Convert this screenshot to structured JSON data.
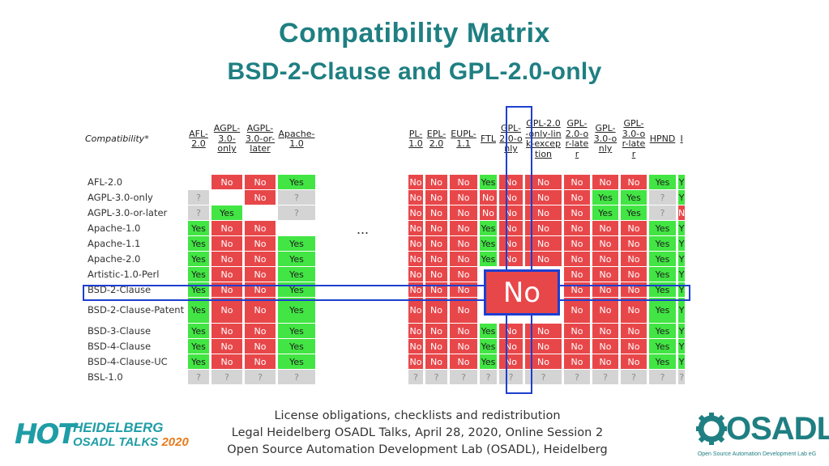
{
  "header": {
    "title": "Compatibility Matrix",
    "subtitle": "BSD-2-Clause and GPL-2.0-only"
  },
  "matrix": {
    "corner_label": "Compatibility*",
    "ellipsis": "...",
    "left_columns": [
      "AFL-2.0",
      "AGPL-3.0-only",
      "AGPL-3.0-or-later",
      "Apache-1.0"
    ],
    "right_columns": [
      "PL-1.0",
      "EPL-2.0",
      "EUPL-1.1",
      "FTL",
      "GPL-2.0-only",
      "GPL-2.0-only-link-exception",
      "GPL-2.0-or-later",
      "GPL-3.0-only",
      "GPL-3.0-or-later",
      "HPND",
      "I"
    ],
    "rows": [
      {
        "name": "AFL-2.0",
        "left": [
          "",
          "No",
          "No",
          "Yes"
        ],
        "right": [
          "No",
          "No",
          "No",
          "Yes",
          "No",
          "No",
          "No",
          "No",
          "No",
          "Yes",
          "Y"
        ]
      },
      {
        "name": "AGPL-3.0-only",
        "left": [
          "?",
          "",
          "No",
          "?"
        ],
        "right": [
          "No",
          "No",
          "No",
          "No",
          "No",
          "No",
          "No",
          "Yes",
          "Yes",
          "?",
          "Y"
        ]
      },
      {
        "name": "AGPL-3.0-or-later",
        "left": [
          "?",
          "Yes",
          "",
          "?"
        ],
        "right": [
          "No",
          "No",
          "No",
          "No",
          "No",
          "No",
          "No",
          "Yes",
          "Yes",
          "?",
          "N"
        ]
      },
      {
        "name": "Apache-1.0",
        "left": [
          "Yes",
          "No",
          "No",
          ""
        ],
        "right": [
          "No",
          "No",
          "No",
          "Yes",
          "No",
          "No",
          "No",
          "No",
          "No",
          "Yes",
          "Y"
        ]
      },
      {
        "name": "Apache-1.1",
        "left": [
          "Yes",
          "No",
          "No",
          "Yes"
        ],
        "right": [
          "No",
          "No",
          "No",
          "Yes",
          "No",
          "No",
          "No",
          "No",
          "No",
          "Yes",
          "Y"
        ]
      },
      {
        "name": "Apache-2.0",
        "left": [
          "Yes",
          "No",
          "No",
          "Yes"
        ],
        "right": [
          "No",
          "No",
          "No",
          "Yes",
          "No",
          "No",
          "No",
          "No",
          "No",
          "Yes",
          "Y"
        ]
      },
      {
        "name": "Artistic-1.0-Perl",
        "left": [
          "Yes",
          "No",
          "No",
          "Yes"
        ],
        "right": [
          "No",
          "No",
          "No",
          "",
          "",
          "",
          "No",
          "No",
          "No",
          "Yes",
          "Y"
        ]
      },
      {
        "name": "BSD-2-Clause",
        "left": [
          "Yes",
          "No",
          "No",
          "Yes"
        ],
        "right": [
          "No",
          "No",
          "No",
          "",
          "",
          "",
          "No",
          "No",
          "No",
          "Yes",
          "Y"
        ]
      },
      {
        "name": "BSD-2-Clause-Patent",
        "left": [
          "Yes",
          "No",
          "No",
          "Yes"
        ],
        "right": [
          "No",
          "No",
          "No",
          "",
          "",
          "",
          "No",
          "No",
          "No",
          "Yes",
          "Y"
        ]
      },
      {
        "name": "BSD-3-Clause",
        "left": [
          "Yes",
          "No",
          "No",
          "Yes"
        ],
        "right": [
          "No",
          "No",
          "No",
          "Yes",
          "No",
          "No",
          "No",
          "No",
          "No",
          "Yes",
          "Y"
        ]
      },
      {
        "name": "BSD-4-Clause",
        "left": [
          "Yes",
          "No",
          "No",
          "Yes"
        ],
        "right": [
          "No",
          "No",
          "No",
          "Yes",
          "No",
          "No",
          "No",
          "No",
          "No",
          "Yes",
          "Y"
        ]
      },
      {
        "name": "BSD-4-Clause-UC",
        "left": [
          "Yes",
          "No",
          "No",
          "Yes"
        ],
        "right": [
          "No",
          "No",
          "No",
          "Yes",
          "No",
          "No",
          "No",
          "No",
          "No",
          "Yes",
          "Y"
        ]
      },
      {
        "name": "BSL-1.0",
        "left": [
          "?",
          "?",
          "?",
          "?"
        ],
        "right": [
          "?",
          "?",
          "?",
          "?",
          "?",
          "?",
          "?",
          "?",
          "?",
          "?",
          "?"
        ]
      }
    ],
    "highlight_value": "No"
  },
  "footer": {
    "line1": "License obligations, checklists and redistribution",
    "line2": "Legal Heidelberg OSADL Talks, April 28, 2020, Online Session 2",
    "line3": "Open Source Automation Development Lab (OSADL), Heidelberg"
  },
  "logos": {
    "hot_mark": "HOT",
    "hot_line1": "HEIDELBERG",
    "hot_line2": "OSADL TALKS",
    "hot_year": "2020",
    "osadl_name": "OSADL",
    "osadl_sub": "Open Source Automation Development Lab eG"
  },
  "colors": {
    "yes": "#42e543",
    "no": "#e8474a",
    "unknown": "#d4d4d4",
    "accent": "#1f7f82",
    "highlight": "#1d3fd0"
  }
}
